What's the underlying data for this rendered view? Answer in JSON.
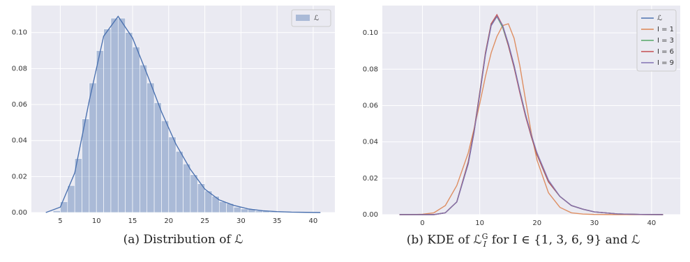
{
  "chart_data": [
    {
      "type": "histogram",
      "legend_label": "ℒ",
      "legend": "upper right",
      "grid": true,
      "color": "#4c72b0",
      "caption": "(a) Distribution of ℒ",
      "bins": [
        3,
        4,
        5,
        6,
        7,
        8,
        9,
        10,
        11,
        12,
        13,
        14,
        15,
        16,
        17,
        18,
        19,
        20,
        21,
        22,
        23,
        24,
        25,
        26,
        27,
        28,
        29,
        30,
        31,
        32,
        33,
        34,
        35,
        36,
        37,
        38,
        39,
        40,
        41
      ],
      "counts": [
        0,
        0.001,
        0.006,
        0.015,
        0.03,
        0.052,
        0.072,
        0.09,
        0.102,
        0.108,
        0.108,
        0.1,
        0.092,
        0.082,
        0.072,
        0.061,
        0.051,
        0.042,
        0.034,
        0.027,
        0.021,
        0.016,
        0.012,
        0.009,
        0.006,
        0.005,
        0.003,
        0.002,
        0.002,
        0.001,
        0.001,
        0.0005,
        0.0003,
        0.0002,
        0.0001,
        0.0001,
        0,
        0
      ],
      "kde": {
        "x": [
          3,
          5,
          7,
          9,
          11,
          13,
          15,
          17,
          19,
          21,
          23,
          25,
          27,
          29,
          31,
          33,
          35,
          37,
          39,
          41
        ],
        "values": [
          0,
          0.003,
          0.022,
          0.062,
          0.098,
          0.109,
          0.097,
          0.077,
          0.056,
          0.038,
          0.024,
          0.013,
          0.007,
          0.004,
          0.002,
          0.001,
          0.0005,
          0.0002,
          0.0001,
          0
        ]
      },
      "xlim": [
        1,
        43
      ],
      "xticks": [
        5,
        10,
        15,
        20,
        25,
        30,
        35,
        40
      ],
      "ylim": [
        0,
        0.115
      ],
      "yticks": [
        {
          "value": 0,
          "label": "0.00"
        },
        {
          "value": 0.02,
          "label": "0.02"
        },
        {
          "value": 0.04,
          "label": "0.04"
        },
        {
          "value": 0.06,
          "label": "0.06"
        },
        {
          "value": 0.08,
          "label": "0.08"
        },
        {
          "value": 0.1,
          "label": "0.10"
        }
      ]
    },
    {
      "type": "line",
      "legend": "upper right",
      "grid": true,
      "caption": {
        "before": "(b) KDE of ℒ",
        "sup": "G",
        "sub": "I",
        "after": " for I ∈ {1, 3, 6, 9} and ℒ"
      },
      "x": [
        -4,
        -2,
        0,
        2,
        4,
        6,
        8,
        9,
        10,
        11,
        12,
        13,
        14,
        15,
        16,
        17,
        18,
        19,
        20,
        22,
        24,
        26,
        28,
        30,
        34,
        38,
        42
      ],
      "series": [
        {
          "name": "ℒ",
          "color": "#4c72b0",
          "values": [
            0,
            0,
            0,
            0,
            0.001,
            0.007,
            0.028,
            0.045,
            0.066,
            0.088,
            0.104,
            0.109,
            0.104,
            0.094,
            0.082,
            0.068,
            0.055,
            0.043,
            0.033,
            0.018,
            0.01,
            0.005,
            0.003,
            0.0015,
            0.0004,
            0.0001,
            0
          ]
        },
        {
          "name": "I = 1",
          "color": "#dd8452",
          "values": [
            0,
            0,
            0.0002,
            0.001,
            0.005,
            0.016,
            0.034,
            0.047,
            0.061,
            0.076,
            0.089,
            0.098,
            0.104,
            0.105,
            0.097,
            0.082,
            0.063,
            0.045,
            0.03,
            0.012,
            0.004,
            0.001,
            0.0003,
            0.0001,
            0,
            0,
            0
          ]
        },
        {
          "name": "I = 3",
          "color": "#55a868",
          "values": [
            0,
            0,
            0,
            0,
            0.001,
            0.007,
            0.029,
            0.046,
            0.067,
            0.089,
            0.105,
            0.109,
            0.103,
            0.093,
            0.081,
            0.068,
            0.055,
            0.043,
            0.033,
            0.018,
            0.01,
            0.005,
            0.003,
            0.0015,
            0.0004,
            0.0001,
            0
          ]
        },
        {
          "name": "I = 6",
          "color": "#c44e52",
          "values": [
            0,
            0,
            0,
            0,
            0.001,
            0.007,
            0.029,
            0.046,
            0.067,
            0.089,
            0.105,
            0.11,
            0.104,
            0.093,
            0.081,
            0.067,
            0.054,
            0.043,
            0.033,
            0.018,
            0.01,
            0.005,
            0.003,
            0.0015,
            0.0004,
            0.0001,
            0
          ]
        },
        {
          "name": "I = 9",
          "color": "#8172b3",
          "values": [
            0,
            0,
            0,
            0,
            0.001,
            0.007,
            0.028,
            0.045,
            0.066,
            0.088,
            0.104,
            0.109,
            0.104,
            0.094,
            0.082,
            0.068,
            0.055,
            0.044,
            0.034,
            0.019,
            0.01,
            0.005,
            0.003,
            0.0015,
            0.0004,
            0.0001,
            0
          ]
        }
      ],
      "xlim": [
        -7,
        45
      ],
      "xticks": [
        0,
        10,
        20,
        30,
        40
      ],
      "ylim": [
        0,
        0.115
      ],
      "yticks": [
        {
          "value": 0,
          "label": "0.00"
        },
        {
          "value": 0.02,
          "label": "0.02"
        },
        {
          "value": 0.04,
          "label": "0.04"
        },
        {
          "value": 0.06,
          "label": "0.06"
        },
        {
          "value": 0.08,
          "label": "0.08"
        },
        {
          "value": 0.1,
          "label": "0.10"
        }
      ]
    }
  ]
}
